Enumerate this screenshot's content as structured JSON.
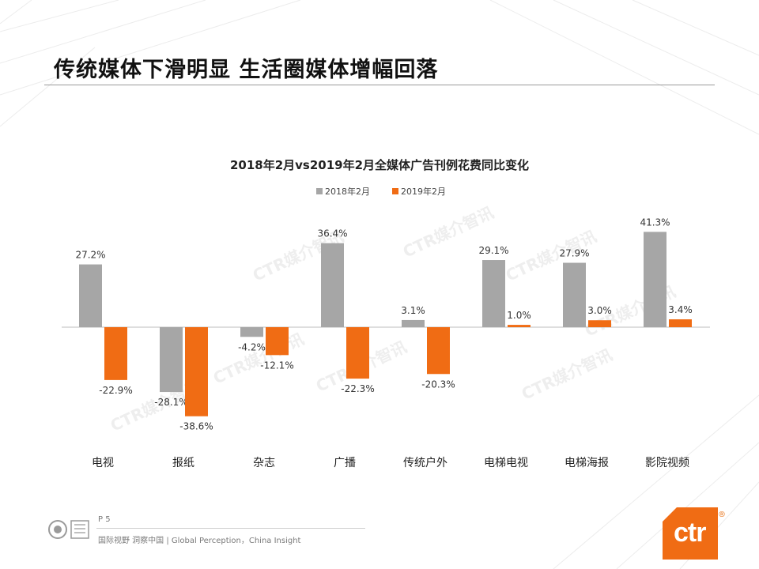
{
  "header": {
    "title": "传统媒体下滑明显 生活圈媒体增幅回落"
  },
  "chart_data": {
    "type": "bar",
    "title": "2018年2月vs2019年2月全媒体广告刊例花费同比变化",
    "categories": [
      "电视",
      "报纸",
      "杂志",
      "广播",
      "传统户外",
      "电梯电视",
      "电梯海报",
      "影院视频"
    ],
    "series": [
      {
        "name": "2018年2月",
        "color": "#a6a6a6",
        "values": [
          27.2,
          -28.1,
          -4.2,
          36.4,
          3.1,
          29.1,
          27.9,
          41.3
        ],
        "labels": [
          "27.2%",
          "-28.1%",
          "-4.2%",
          "36.4%",
          "3.1%",
          "29.1%",
          "27.9%",
          "41.3%"
        ]
      },
      {
        "name": "2019年2月",
        "color": "#f06c14",
        "values": [
          -22.9,
          -38.6,
          -12.1,
          -22.3,
          -20.3,
          1.0,
          3.0,
          3.4
        ],
        "labels": [
          "-22.9%",
          "-38.6%",
          "-12.1%",
          "-22.3%",
          "-20.3%",
          "1.0%",
          "3.0%",
          "3.4%"
        ]
      }
    ],
    "legend_position": "top-center",
    "grid": false
  },
  "watermark": {
    "text": "CTR媒介智讯"
  },
  "footer": {
    "page": "P 5",
    "slogan": "国际视野 洞察中国 | Global Perception，China Insight",
    "logo_text": "ctr",
    "logo_mark": "®",
    "brand_color": "#f06c14"
  }
}
